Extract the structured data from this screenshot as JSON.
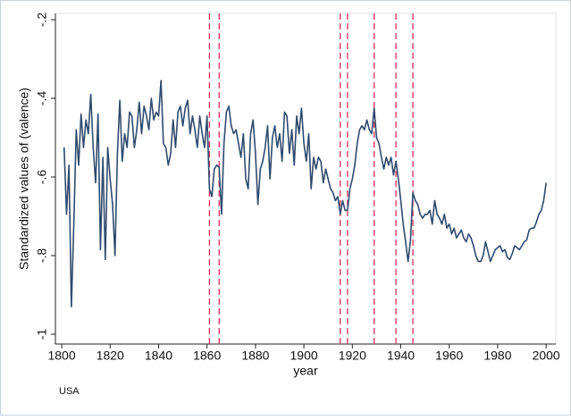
{
  "chart_data": {
    "type": "line",
    "ylabel": "Standardized values of (valence)",
    "xlabel": "year",
    "note": "USA",
    "xlim": [
      1797.4,
      2004
    ],
    "ylim": [
      -1.025,
      -0.184
    ],
    "xticks": [
      1800,
      1820,
      1840,
      1860,
      1880,
      1900,
      1920,
      1940,
      1960,
      1980,
      2000
    ],
    "yticks": [
      {
        "value": -0.2,
        "label": "-.2"
      },
      {
        "value": -0.4,
        "label": "-.4"
      },
      {
        "value": -0.6,
        "label": "-.6"
      },
      {
        "value": -0.8,
        "label": "-.8"
      },
      {
        "value": -1,
        "label": "-1"
      }
    ],
    "grid": false,
    "xlines": [
      1861,
      1865,
      1915,
      1918,
      1929,
      1938,
      1945
    ],
    "xline_color": "#d8325a",
    "x": [
      1801,
      1802,
      1803,
      1804,
      1805,
      1806,
      1807,
      1808,
      1809,
      1810,
      1811,
      1812,
      1813,
      1814,
      1815,
      1816,
      1817,
      1818,
      1819,
      1820,
      1821,
      1822,
      1823,
      1824,
      1825,
      1826,
      1827,
      1828,
      1829,
      1830,
      1831,
      1832,
      1833,
      1834,
      1835,
      1836,
      1837,
      1838,
      1839,
      1840,
      1841,
      1842,
      1843,
      1844,
      1845,
      1846,
      1847,
      1848,
      1849,
      1850,
      1851,
      1852,
      1853,
      1854,
      1855,
      1856,
      1857,
      1858,
      1859,
      1860,
      1861,
      1862,
      1863,
      1864,
      1865,
      1866,
      1867,
      1868,
      1869,
      1870,
      1871,
      1872,
      1873,
      1874,
      1875,
      1876,
      1877,
      1878,
      1879,
      1880,
      1881,
      1882,
      1883,
      1884,
      1885,
      1886,
      1887,
      1888,
      1889,
      1890,
      1891,
      1892,
      1893,
      1894,
      1895,
      1896,
      1897,
      1898,
      1899,
      1900,
      1901,
      1902,
      1903,
      1904,
      1905,
      1906,
      1907,
      1908,
      1909,
      1910,
      1911,
      1912,
      1913,
      1914,
      1915,
      1916,
      1917,
      1918,
      1919,
      1920,
      1921,
      1922,
      1923,
      1924,
      1925,
      1926,
      1927,
      1928,
      1929,
      1930,
      1931,
      1932,
      1933,
      1934,
      1935,
      1936,
      1937,
      1938,
      1939,
      1940,
      1941,
      1942,
      1943,
      1944,
      1945,
      1946,
      1947,
      1948,
      1949,
      1950,
      1951,
      1952,
      1953,
      1954,
      1955,
      1956,
      1957,
      1958,
      1959,
      1960,
      1961,
      1962,
      1963,
      1964,
      1965,
      1966,
      1967,
      1968,
      1969,
      1970,
      1971,
      1972,
      1973,
      1974,
      1975,
      1976,
      1977,
      1978,
      1979,
      1980,
      1981,
      1982,
      1983,
      1984,
      1985,
      1986,
      1987,
      1988,
      1989,
      1990,
      1991,
      1992,
      1993,
      1994,
      1995,
      1996,
      1997,
      1998,
      1999,
      2000
    ],
    "series": [
      {
        "color": "#2f4a6d",
        "values": [
          -0.525,
          -0.695,
          -0.57,
          -0.93,
          -0.72,
          -0.48,
          -0.57,
          -0.44,
          -0.525,
          -0.455,
          -0.49,
          -0.39,
          -0.525,
          -0.615,
          -0.44,
          -0.785,
          -0.55,
          -0.81,
          -0.525,
          -0.605,
          -0.67,
          -0.8,
          -0.54,
          -0.405,
          -0.56,
          -0.49,
          -0.525,
          -0.435,
          -0.445,
          -0.525,
          -0.48,
          -0.41,
          -0.49,
          -0.42,
          -0.445,
          -0.48,
          -0.4,
          -0.455,
          -0.435,
          -0.445,
          -0.355,
          -0.515,
          -0.525,
          -0.57,
          -0.54,
          -0.455,
          -0.525,
          -0.435,
          -0.42,
          -0.47,
          -0.425,
          -0.405,
          -0.49,
          -0.445,
          -0.48,
          -0.525,
          -0.445,
          -0.49,
          -0.525,
          -0.445,
          -0.63,
          -0.65,
          -0.58,
          -0.57,
          -0.575,
          -0.695,
          -0.515,
          -0.435,
          -0.42,
          -0.47,
          -0.49,
          -0.48,
          -0.515,
          -0.55,
          -0.49,
          -0.605,
          -0.63,
          -0.49,
          -0.455,
          -0.54,
          -0.67,
          -0.58,
          -0.56,
          -0.525,
          -0.47,
          -0.605,
          -0.5,
          -0.47,
          -0.525,
          -0.49,
          -0.56,
          -0.435,
          -0.445,
          -0.54,
          -0.48,
          -0.57,
          -0.445,
          -0.49,
          -0.425,
          -0.515,
          -0.56,
          -0.49,
          -0.63,
          -0.55,
          -0.58,
          -0.55,
          -0.56,
          -0.615,
          -0.58,
          -0.605,
          -0.63,
          -0.64,
          -0.66,
          -0.65,
          -0.695,
          -0.66,
          -0.685,
          -0.685,
          -0.63,
          -0.605,
          -0.57,
          -0.515,
          -0.48,
          -0.47,
          -0.48,
          -0.455,
          -0.48,
          -0.49,
          -0.425,
          -0.5,
          -0.515,
          -0.55,
          -0.58,
          -0.55,
          -0.57,
          -0.55,
          -0.595,
          -0.56,
          -0.605,
          -0.66,
          -0.72,
          -0.765,
          -0.815,
          -0.76,
          -0.64,
          -0.66,
          -0.67,
          -0.695,
          -0.705,
          -0.695,
          -0.695,
          -0.685,
          -0.72,
          -0.66,
          -0.695,
          -0.705,
          -0.72,
          -0.695,
          -0.73,
          -0.72,
          -0.745,
          -0.73,
          -0.755,
          -0.745,
          -0.735,
          -0.755,
          -0.765,
          -0.745,
          -0.755,
          -0.775,
          -0.8,
          -0.815,
          -0.815,
          -0.8,
          -0.765,
          -0.79,
          -0.815,
          -0.8,
          -0.785,
          -0.78,
          -0.775,
          -0.79,
          -0.785,
          -0.805,
          -0.81,
          -0.795,
          -0.775,
          -0.78,
          -0.785,
          -0.775,
          -0.765,
          -0.76,
          -0.735,
          -0.73,
          -0.73,
          -0.715,
          -0.695,
          -0.685,
          -0.66,
          -0.615
        ]
      }
    ]
  }
}
